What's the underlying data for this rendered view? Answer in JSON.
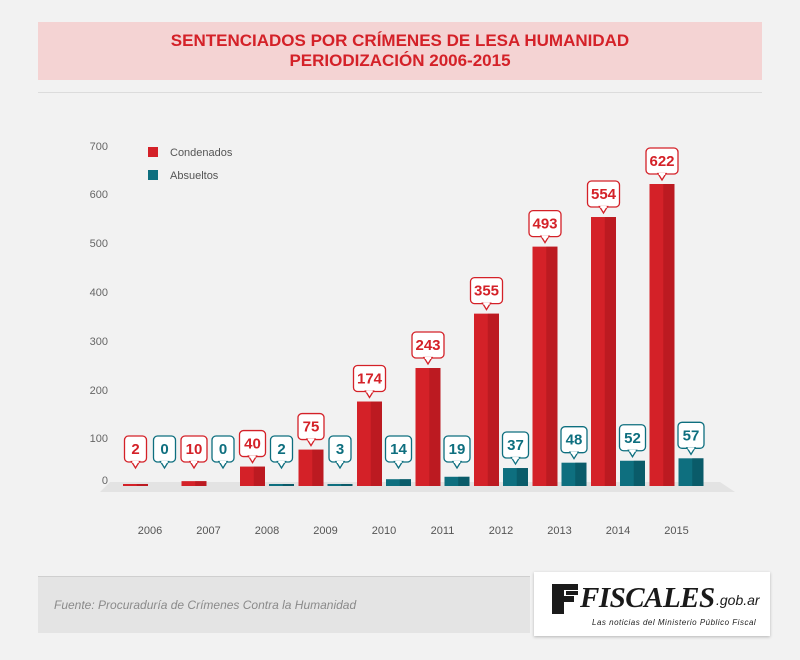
{
  "header": {
    "title_line1": "SENTENCIADOS POR CRÍMENES DE LESA HUMANIDAD",
    "title_line2": "PERIODIZACIÓN 2006-2015"
  },
  "footer": {
    "source": "Fuente: Procuraduría de Crímenes Contra la Humanidad",
    "logo_word": "FISCALES",
    "logo_domain": ".gob.ar",
    "logo_tagline": "Las noticias del Ministerio Público Fiscal"
  },
  "colors": {
    "condenados": "#d42128",
    "condenados_dark": "#a8151b",
    "absueltos": "#0e6f7f",
    "absueltos_dark": "#094e5a",
    "title": "#d42128"
  },
  "chart_data": {
    "type": "bar",
    "title": "SENTENCIADOS POR CRÍMENES DE LESA HUMANIDAD PERIODIZACIÓN 2006-2015",
    "categories": [
      "2006",
      "2007",
      "2008",
      "2009",
      "2010",
      "2011",
      "2012",
      "2013",
      "2014",
      "2015"
    ],
    "series": [
      {
        "name": "Condenados",
        "color": "#d42128",
        "values": [
          2,
          10,
          40,
          75,
          174,
          243,
          355,
          493,
          554,
          622
        ]
      },
      {
        "name": "Absueltos",
        "color": "#0e6f7f",
        "values": [
          0,
          0,
          2,
          3,
          14,
          19,
          37,
          48,
          52,
          57
        ]
      }
    ],
    "yticks": [
      0,
      100,
      200,
      300,
      400,
      500,
      600,
      700
    ],
    "ylim": [
      0,
      700
    ],
    "xlabel": "",
    "ylabel": "",
    "grid": false,
    "legend": "top-left",
    "data_labels": true
  }
}
